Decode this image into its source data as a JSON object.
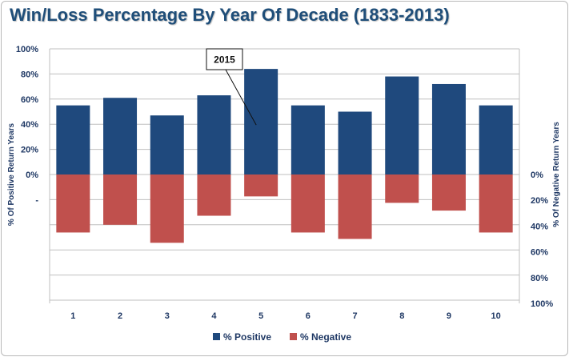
{
  "chart_data": {
    "type": "bar",
    "title": "Win/Loss Percentage By Year Of Decade (1833-2013)",
    "categories": [
      "1",
      "2",
      "3",
      "4",
      "5",
      "6",
      "7",
      "8",
      "9",
      "10"
    ],
    "series": [
      {
        "name": "% Positive",
        "axis": "left",
        "color": "#1f497d",
        "values": [
          55,
          61,
          47,
          63,
          84,
          55,
          50,
          78,
          72,
          55
        ]
      },
      {
        "name": "% Negative",
        "axis": "right",
        "color": "#c0504d",
        "values": [
          45,
          39,
          53,
          32,
          17,
          45,
          50,
          22,
          28,
          45
        ]
      }
    ],
    "left_axis": {
      "label": "% Of Positive Return Years",
      "ticks": [
        "100%",
        "80%",
        "60%",
        "40%",
        "20%",
        "0%",
        "-"
      ]
    },
    "right_axis": {
      "label": "% Of Negative Return Years",
      "ticks": [
        "0%",
        "20%",
        "40%",
        "60%",
        "80%",
        "100%"
      ]
    },
    "ylim": [
      0,
      100
    ],
    "annotation": {
      "text": "2015",
      "category": "5"
    },
    "grid": true,
    "legend_position": "bottom"
  }
}
